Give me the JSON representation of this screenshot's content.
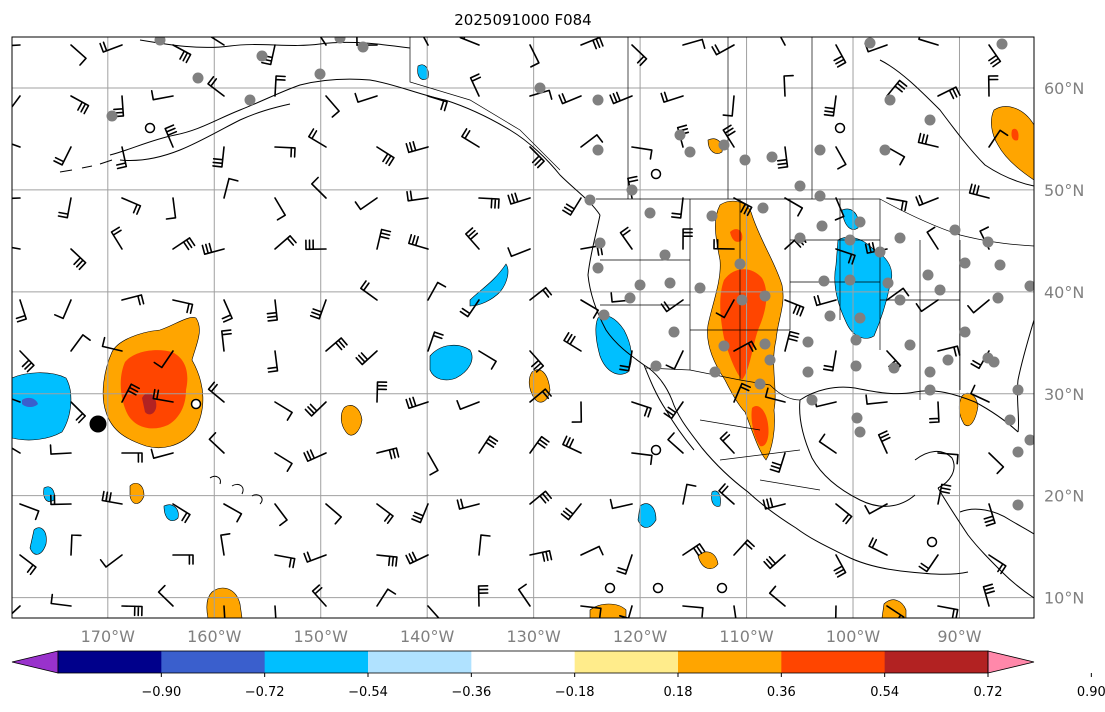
{
  "title": "2025091000 F084",
  "map": {
    "lon_range": [
      -179,
      -83
    ],
    "lat_range": [
      8,
      65
    ],
    "lat_ticks": [
      {
        "value": 60,
        "label": "60°N"
      },
      {
        "value": 50,
        "label": "50°N"
      },
      {
        "value": 40,
        "label": "40°N"
      },
      {
        "value": 30,
        "label": "30°N"
      },
      {
        "value": 20,
        "label": "20°N"
      },
      {
        "value": 10,
        "label": "10°N"
      }
    ],
    "lon_ticks": [
      {
        "value": -170,
        "label": "170°W"
      },
      {
        "value": -160,
        "label": "160°W"
      },
      {
        "value": -150,
        "label": "150°W"
      },
      {
        "value": -140,
        "label": "140°W"
      },
      {
        "value": -130,
        "label": "130°W"
      },
      {
        "value": -120,
        "label": "120°W"
      },
      {
        "value": -110,
        "label": "110°W"
      },
      {
        "value": -100,
        "label": "100°W"
      },
      {
        "value": -90,
        "label": "90°W"
      }
    ]
  },
  "colorbar": {
    "colors": [
      "#9932cc",
      "#00008b",
      "#3a5fcd",
      "#00bfff",
      "#b0e2ff",
      "#ffffff",
      "#ffec8b",
      "#ffa500",
      "#ff4500",
      "#b22222",
      "#ff88aa"
    ],
    "labels": [
      "−0.90",
      "−0.72",
      "−0.54",
      "−0.36",
      "−0.18",
      "0.18",
      "0.36",
      "0.54",
      "0.72",
      "0.90"
    ]
  },
  "field_colors": {
    "pos_light": "#ffa500",
    "pos_mid": "#ff4500",
    "pos_dark": "#b22222",
    "neg_light": "#00bfff",
    "neg_mid": "#3a5fcd"
  }
}
